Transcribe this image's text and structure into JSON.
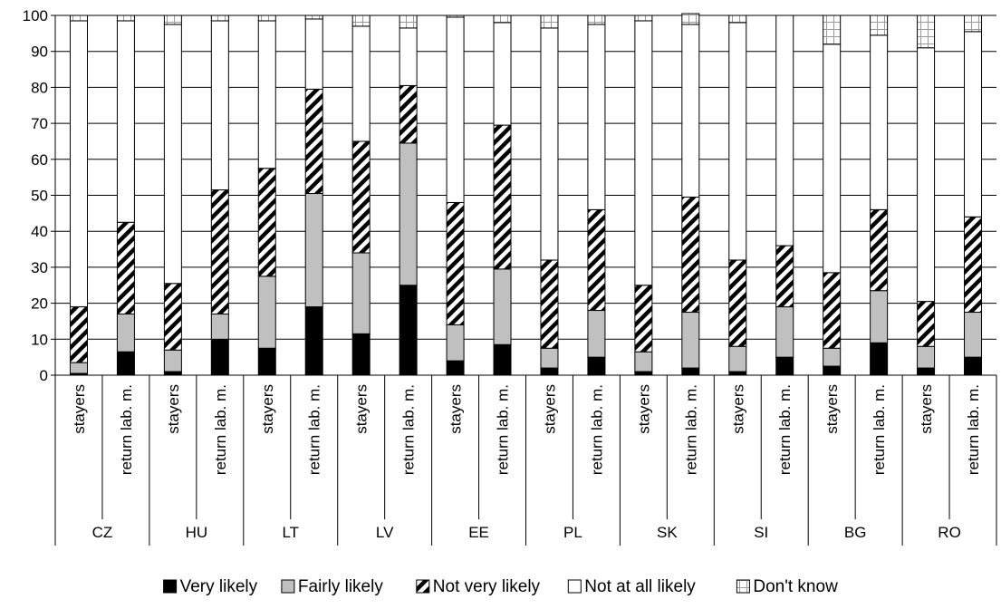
{
  "chart_data": {
    "type": "bar",
    "stacked": true,
    "title": "",
    "xlabel": "",
    "ylabel": "",
    "ylim": [
      0,
      100
    ],
    "yticks": [
      0,
      10,
      20,
      30,
      40,
      50,
      60,
      70,
      80,
      90,
      100
    ],
    "grid": true,
    "legend_position": "bottom",
    "groups": [
      "CZ",
      "HU",
      "LT",
      "LV",
      "EE",
      "PL",
      "SK",
      "SI",
      "BG",
      "RO"
    ],
    "subcategories": [
      "stayers",
      "return lab. m."
    ],
    "series": [
      {
        "name": "Very likely",
        "color": "#000000",
        "pattern": "solid",
        "values": [
          0.5,
          6.5,
          1,
          10,
          7.5,
          19,
          11.5,
          25,
          4,
          8.5,
          2,
          5,
          1,
          2,
          1,
          5,
          2.5,
          9,
          2,
          5
        ]
      },
      {
        "name": "Fairly likely",
        "color": "#c0c0c0",
        "pattern": "solid",
        "values": [
          3,
          10.5,
          6,
          7,
          20,
          31.5,
          22.5,
          39.5,
          10,
          21,
          5.5,
          13,
          5.5,
          15.5,
          7,
          14,
          5,
          14.5,
          6,
          12.5
        ]
      },
      {
        "name": "Not very likely",
        "color": "#000000",
        "pattern": "diagonal-stripes",
        "values": [
          15.5,
          25.5,
          18.5,
          34.5,
          30,
          29,
          31,
          16,
          34,
          40,
          24.5,
          28,
          18.5,
          32,
          24,
          17,
          21,
          22.5,
          12.5,
          26.5
        ]
      },
      {
        "name": "Not at all likely",
        "color": "#ffffff",
        "pattern": "solid",
        "values": [
          79.5,
          56,
          72,
          47,
          41,
          19.5,
          32,
          16,
          51.5,
          28.5,
          64.5,
          51.5,
          73.5,
          48,
          66,
          64,
          63.5,
          48.5,
          70.5,
          51.5
        ]
      },
      {
        "name": "Don't know",
        "color": "#ffffff",
        "pattern": "grid",
        "values": [
          1.5,
          1.5,
          2.5,
          1.5,
          1.5,
          1,
          3,
          3.5,
          0.5,
          2,
          3.5,
          2.5,
          1.5,
          3,
          2,
          0,
          8,
          5.5,
          9,
          4.5
        ]
      }
    ]
  }
}
